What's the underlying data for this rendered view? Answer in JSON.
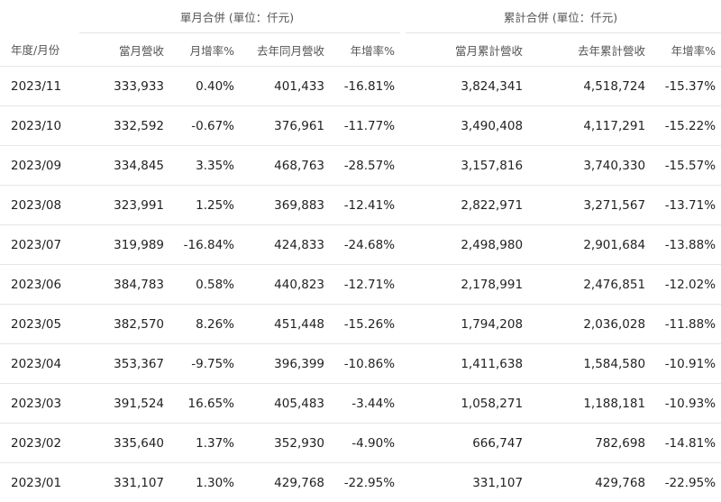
{
  "groups": {
    "single": "單月合併 (單位：仟元)",
    "cumulative": "累計合併 (單位：仟元)"
  },
  "columns": {
    "period": "年度/月份",
    "monthly_revenue": "當月營收",
    "mom": "月增率%",
    "last_year_monthly": "去年同月營收",
    "yoy": "年增率%",
    "cumulative": "當月累計營收",
    "last_year_cumulative": "去年累計營收",
    "cum_yoy": "年增率%"
  },
  "rows": [
    {
      "period": "2023/11",
      "monthly": "333,933",
      "mom": "0.40%",
      "ly_monthly": "401,433",
      "yoy": "-16.81%",
      "cum": "3,824,341",
      "ly_cum": "4,518,724",
      "cum_yoy": "-15.37%"
    },
    {
      "period": "2023/10",
      "monthly": "332,592",
      "mom": "-0.67%",
      "ly_monthly": "376,961",
      "yoy": "-11.77%",
      "cum": "3,490,408",
      "ly_cum": "4,117,291",
      "cum_yoy": "-15.22%"
    },
    {
      "period": "2023/09",
      "monthly": "334,845",
      "mom": "3.35%",
      "ly_monthly": "468,763",
      "yoy": "-28.57%",
      "cum": "3,157,816",
      "ly_cum": "3,740,330",
      "cum_yoy": "-15.57%"
    },
    {
      "period": "2023/08",
      "monthly": "323,991",
      "mom": "1.25%",
      "ly_monthly": "369,883",
      "yoy": "-12.41%",
      "cum": "2,822,971",
      "ly_cum": "3,271,567",
      "cum_yoy": "-13.71%"
    },
    {
      "period": "2023/07",
      "monthly": "319,989",
      "mom": "-16.84%",
      "ly_monthly": "424,833",
      "yoy": "-24.68%",
      "cum": "2,498,980",
      "ly_cum": "2,901,684",
      "cum_yoy": "-13.88%"
    },
    {
      "period": "2023/06",
      "monthly": "384,783",
      "mom": "0.58%",
      "ly_monthly": "440,823",
      "yoy": "-12.71%",
      "cum": "2,178,991",
      "ly_cum": "2,476,851",
      "cum_yoy": "-12.02%"
    },
    {
      "period": "2023/05",
      "monthly": "382,570",
      "mom": "8.26%",
      "ly_monthly": "451,448",
      "yoy": "-15.26%",
      "cum": "1,794,208",
      "ly_cum": "2,036,028",
      "cum_yoy": "-11.88%"
    },
    {
      "period": "2023/04",
      "monthly": "353,367",
      "mom": "-9.75%",
      "ly_monthly": "396,399",
      "yoy": "-10.86%",
      "cum": "1,411,638",
      "ly_cum": "1,584,580",
      "cum_yoy": "-10.91%"
    },
    {
      "period": "2023/03",
      "monthly": "391,524",
      "mom": "16.65%",
      "ly_monthly": "405,483",
      "yoy": "-3.44%",
      "cum": "1,058,271",
      "ly_cum": "1,188,181",
      "cum_yoy": "-10.93%"
    },
    {
      "period": "2023/02",
      "monthly": "335,640",
      "mom": "1.37%",
      "ly_monthly": "352,930",
      "yoy": "-4.90%",
      "cum": "666,747",
      "ly_cum": "782,698",
      "cum_yoy": "-14.81%"
    },
    {
      "period": "2023/01",
      "monthly": "331,107",
      "mom": "1.30%",
      "ly_monthly": "429,768",
      "yoy": "-22.95%",
      "cum": "331,107",
      "ly_cum": "429,768",
      "cum_yoy": "-22.95%"
    }
  ]
}
